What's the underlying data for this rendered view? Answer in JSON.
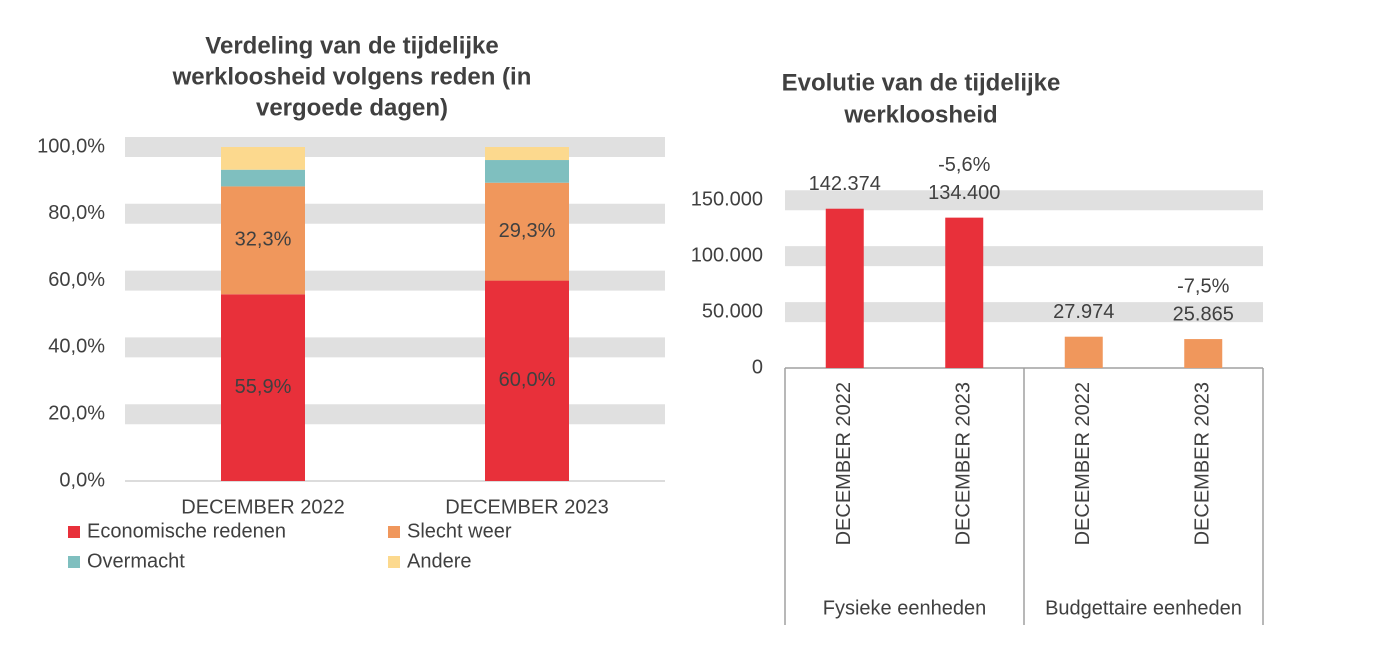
{
  "chart_data": [
    {
      "type": "stacked_bar",
      "title": [
        "Verdeling van de tijdelijke",
        "werkloosheid volgens reden (in",
        "vergoede dagen)"
      ],
      "categories": [
        "DECEMBER 2022",
        "DECEMBER 2023"
      ],
      "series": [
        {
          "name": "Economische redenen",
          "color": "#e8303a",
          "values": [
            55.9,
            60.0
          ],
          "value_labels": [
            "55,9%",
            "60,0%"
          ]
        },
        {
          "name": "Slecht weer",
          "color": "#f0975c",
          "values": [
            32.3,
            29.3
          ],
          "value_labels": [
            "32,3%",
            "29,3%"
          ]
        },
        {
          "name": "Overmacht",
          "color": "#7fbfbf",
          "values": [
            5.0,
            6.8
          ]
        },
        {
          "name": "Andere",
          "color": "#fcd98e",
          "values": [
            6.8,
            3.9
          ]
        }
      ],
      "ylim": [
        0,
        100
      ],
      "yticks": [
        {
          "value": 0,
          "label": "0,0%"
        },
        {
          "value": 20,
          "label": "20,0%"
        },
        {
          "value": 40,
          "label": "40,0%"
        },
        {
          "value": 60,
          "label": "60,0%"
        },
        {
          "value": 80,
          "label": "80,0%"
        },
        {
          "value": 100,
          "label": "100,0%"
        }
      ],
      "grid": true,
      "legend": "bottom"
    },
    {
      "type": "grouped_bar",
      "title": [
        "Evolutie van de tijdelijke",
        "werkloosheid"
      ],
      "groups": [
        {
          "name": "Fysieke eenheden",
          "color": "#e8303a",
          "categories": [
            "DECEMBER 2022",
            "DECEMBER 2023"
          ],
          "values": [
            142374,
            134400
          ],
          "value_labels": [
            "142.374",
            "134.400"
          ],
          "change_labels": [
            null,
            "-5,6%"
          ]
        },
        {
          "name": "Budgettaire eenheden",
          "color": "#f0975c",
          "categories": [
            "DECEMBER 2022",
            "DECEMBER 2023"
          ],
          "values": [
            27974,
            25865
          ],
          "value_labels": [
            "27.974",
            "25.865"
          ],
          "change_labels": [
            null,
            "-7,5%"
          ]
        }
      ],
      "ylim": [
        0,
        160000
      ],
      "yticks": [
        0,
        {
          "value": 50000,
          "label": "50.000"
        },
        {
          "value": 100000,
          "label": "100.000"
        },
        {
          "value": 150000,
          "label": "150.000"
        }
      ],
      "grid": true
    }
  ]
}
